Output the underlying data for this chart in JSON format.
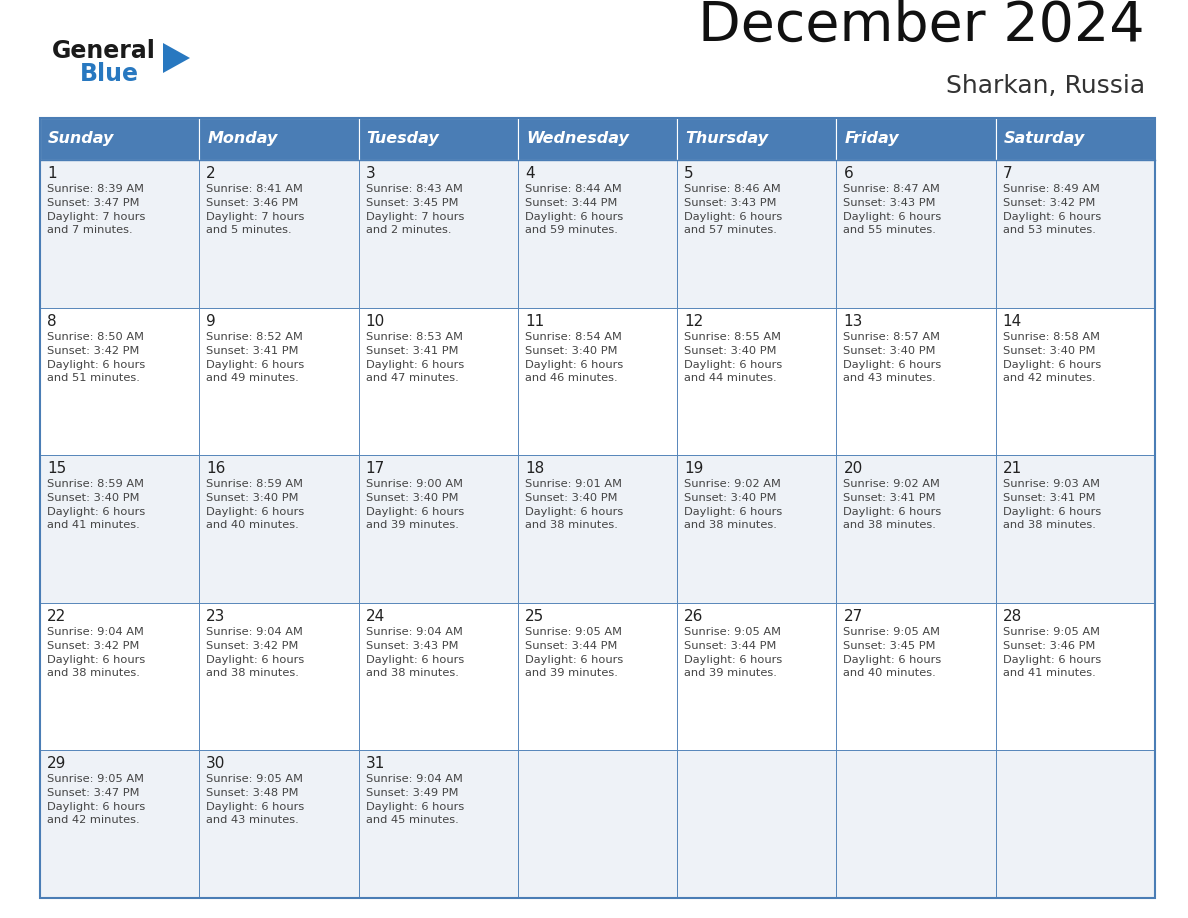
{
  "title": "December 2024",
  "subtitle": "Sharkan, Russia",
  "days_of_week": [
    "Sunday",
    "Monday",
    "Tuesday",
    "Wednesday",
    "Thursday",
    "Friday",
    "Saturday"
  ],
  "header_bg": "#4a7db5",
  "header_text": "#ffffff",
  "cell_bg_odd": "#eef2f7",
  "cell_bg_even": "#ffffff",
  "border_color": "#4a7db5",
  "day_num_color": "#222222",
  "text_color": "#444444",
  "title_color": "#111111",
  "subtitle_color": "#333333",
  "logo_black": "#1a1a1a",
  "logo_blue": "#2878c0",
  "calendar_data": [
    [
      {
        "day": 1,
        "sunrise": "8:39 AM",
        "sunset": "3:47 PM",
        "daylight": "7 hours and 7 minutes."
      },
      {
        "day": 2,
        "sunrise": "8:41 AM",
        "sunset": "3:46 PM",
        "daylight": "7 hours and 5 minutes."
      },
      {
        "day": 3,
        "sunrise": "8:43 AM",
        "sunset": "3:45 PM",
        "daylight": "7 hours and 2 minutes."
      },
      {
        "day": 4,
        "sunrise": "8:44 AM",
        "sunset": "3:44 PM",
        "daylight": "6 hours and 59 minutes."
      },
      {
        "day": 5,
        "sunrise": "8:46 AM",
        "sunset": "3:43 PM",
        "daylight": "6 hours and 57 minutes."
      },
      {
        "day": 6,
        "sunrise": "8:47 AM",
        "sunset": "3:43 PM",
        "daylight": "6 hours and 55 minutes."
      },
      {
        "day": 7,
        "sunrise": "8:49 AM",
        "sunset": "3:42 PM",
        "daylight": "6 hours and 53 minutes."
      }
    ],
    [
      {
        "day": 8,
        "sunrise": "8:50 AM",
        "sunset": "3:42 PM",
        "daylight": "6 hours and 51 minutes."
      },
      {
        "day": 9,
        "sunrise": "8:52 AM",
        "sunset": "3:41 PM",
        "daylight": "6 hours and 49 minutes."
      },
      {
        "day": 10,
        "sunrise": "8:53 AM",
        "sunset": "3:41 PM",
        "daylight": "6 hours and 47 minutes."
      },
      {
        "day": 11,
        "sunrise": "8:54 AM",
        "sunset": "3:40 PM",
        "daylight": "6 hours and 46 minutes."
      },
      {
        "day": 12,
        "sunrise": "8:55 AM",
        "sunset": "3:40 PM",
        "daylight": "6 hours and 44 minutes."
      },
      {
        "day": 13,
        "sunrise": "8:57 AM",
        "sunset": "3:40 PM",
        "daylight": "6 hours and 43 minutes."
      },
      {
        "day": 14,
        "sunrise": "8:58 AM",
        "sunset": "3:40 PM",
        "daylight": "6 hours and 42 minutes."
      }
    ],
    [
      {
        "day": 15,
        "sunrise": "8:59 AM",
        "sunset": "3:40 PM",
        "daylight": "6 hours and 41 minutes."
      },
      {
        "day": 16,
        "sunrise": "8:59 AM",
        "sunset": "3:40 PM",
        "daylight": "6 hours and 40 minutes."
      },
      {
        "day": 17,
        "sunrise": "9:00 AM",
        "sunset": "3:40 PM",
        "daylight": "6 hours and 39 minutes."
      },
      {
        "day": 18,
        "sunrise": "9:01 AM",
        "sunset": "3:40 PM",
        "daylight": "6 hours and 38 minutes."
      },
      {
        "day": 19,
        "sunrise": "9:02 AM",
        "sunset": "3:40 PM",
        "daylight": "6 hours and 38 minutes."
      },
      {
        "day": 20,
        "sunrise": "9:02 AM",
        "sunset": "3:41 PM",
        "daylight": "6 hours and 38 minutes."
      },
      {
        "day": 21,
        "sunrise": "9:03 AM",
        "sunset": "3:41 PM",
        "daylight": "6 hours and 38 minutes."
      }
    ],
    [
      {
        "day": 22,
        "sunrise": "9:04 AM",
        "sunset": "3:42 PM",
        "daylight": "6 hours and 38 minutes."
      },
      {
        "day": 23,
        "sunrise": "9:04 AM",
        "sunset": "3:42 PM",
        "daylight": "6 hours and 38 minutes."
      },
      {
        "day": 24,
        "sunrise": "9:04 AM",
        "sunset": "3:43 PM",
        "daylight": "6 hours and 38 minutes."
      },
      {
        "day": 25,
        "sunrise": "9:05 AM",
        "sunset": "3:44 PM",
        "daylight": "6 hours and 39 minutes."
      },
      {
        "day": 26,
        "sunrise": "9:05 AM",
        "sunset": "3:44 PM",
        "daylight": "6 hours and 39 minutes."
      },
      {
        "day": 27,
        "sunrise": "9:05 AM",
        "sunset": "3:45 PM",
        "daylight": "6 hours and 40 minutes."
      },
      {
        "day": 28,
        "sunrise": "9:05 AM",
        "sunset": "3:46 PM",
        "daylight": "6 hours and 41 minutes."
      }
    ],
    [
      {
        "day": 29,
        "sunrise": "9:05 AM",
        "sunset": "3:47 PM",
        "daylight": "6 hours and 42 minutes."
      },
      {
        "day": 30,
        "sunrise": "9:05 AM",
        "sunset": "3:48 PM",
        "daylight": "6 hours and 43 minutes."
      },
      {
        "day": 31,
        "sunrise": "9:04 AM",
        "sunset": "3:49 PM",
        "daylight": "6 hours and 45 minutes."
      },
      null,
      null,
      null,
      null
    ]
  ]
}
